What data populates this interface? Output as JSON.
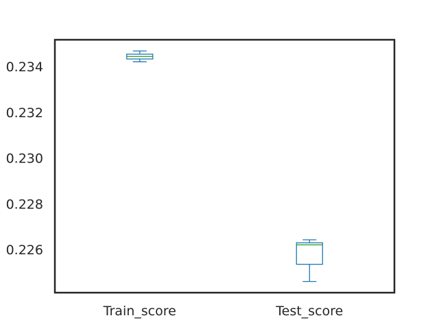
{
  "chart_data": {
    "type": "box",
    "title": "",
    "xlabel": "",
    "ylabel": "",
    "categories": [
      "Train_score",
      "Test_score"
    ],
    "ylim": [
      0.22412,
      0.23517
    ],
    "yticks": [
      0.226,
      0.228,
      0.23,
      0.232,
      0.234
    ],
    "ytick_labels": [
      "0.226",
      "0.228",
      "0.230",
      "0.232",
      "0.234"
    ],
    "grid": false,
    "boxes": [
      {
        "category": "Train_score",
        "whisker_low": 0.23421,
        "q1": 0.23433,
        "median": 0.23444,
        "q3": 0.23454,
        "whisker_high": 0.23468
      },
      {
        "category": "Test_score",
        "whisker_low": 0.22461,
        "q1": 0.22536,
        "median": 0.22621,
        "q3": 0.2263,
        "whisker_high": 0.22643
      }
    ],
    "colors": {
      "box": "#1f77b4",
      "median": "#2ca02c",
      "axes": "#262626",
      "text": "#262626"
    }
  }
}
